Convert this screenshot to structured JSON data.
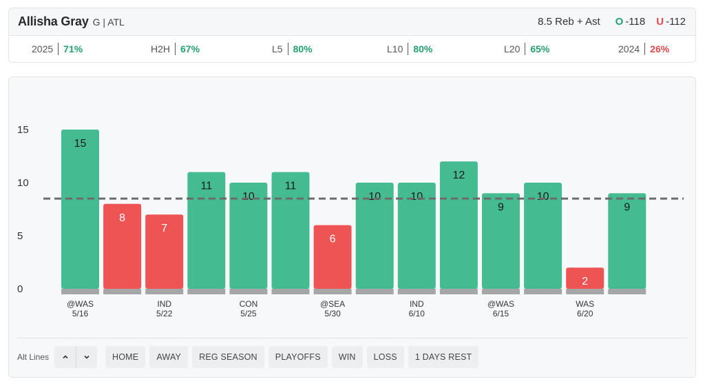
{
  "header": {
    "player_name": "Allisha Gray",
    "player_meta": "G | ATL",
    "prop_line": "8.5 Reb + Ast",
    "over_letter": "O",
    "over_odds": "-118",
    "under_letter": "U",
    "under_odds": "-112"
  },
  "stats": [
    {
      "label": "2025",
      "value": "71%",
      "color": "green"
    },
    {
      "label": "H2H",
      "value": "67%",
      "color": "green"
    },
    {
      "label": "L5",
      "value": "80%",
      "color": "green"
    },
    {
      "label": "L10",
      "value": "80%",
      "color": "green"
    },
    {
      "label": "L20",
      "value": "65%",
      "color": "green"
    },
    {
      "label": "2024",
      "value": "26%",
      "color": "red"
    }
  ],
  "colors": {
    "over": "#45bb92",
    "under": "#ef5455",
    "base": "#a6a6a6",
    "line": "#6b6b6b"
  },
  "chart_data": {
    "type": "bar",
    "line": 8.5,
    "ylim": [
      0,
      16
    ],
    "yticks": [
      0,
      5,
      10,
      15
    ],
    "values": [
      15,
      8,
      7,
      11,
      10,
      11,
      6,
      10,
      10,
      12,
      9,
      10,
      2,
      9
    ],
    "x_labels": [
      {
        "index": 0,
        "opp": "@WAS",
        "date": "5/16"
      },
      {
        "index": 2,
        "opp": "IND",
        "date": "5/22"
      },
      {
        "index": 4,
        "opp": "CON",
        "date": "5/25"
      },
      {
        "index": 6,
        "opp": "@SEA",
        "date": "5/30"
      },
      {
        "index": 8,
        "opp": "IND",
        "date": "6/10"
      },
      {
        "index": 10,
        "opp": "@WAS",
        "date": "6/15"
      },
      {
        "index": 12,
        "opp": "WAS",
        "date": "6/20"
      }
    ]
  },
  "controls": {
    "alt_lines_label": "Alt Lines",
    "filters": [
      "HOME",
      "AWAY",
      "REG SEASON",
      "PLAYOFFS",
      "WIN",
      "LOSS",
      "1 DAYS REST"
    ]
  }
}
